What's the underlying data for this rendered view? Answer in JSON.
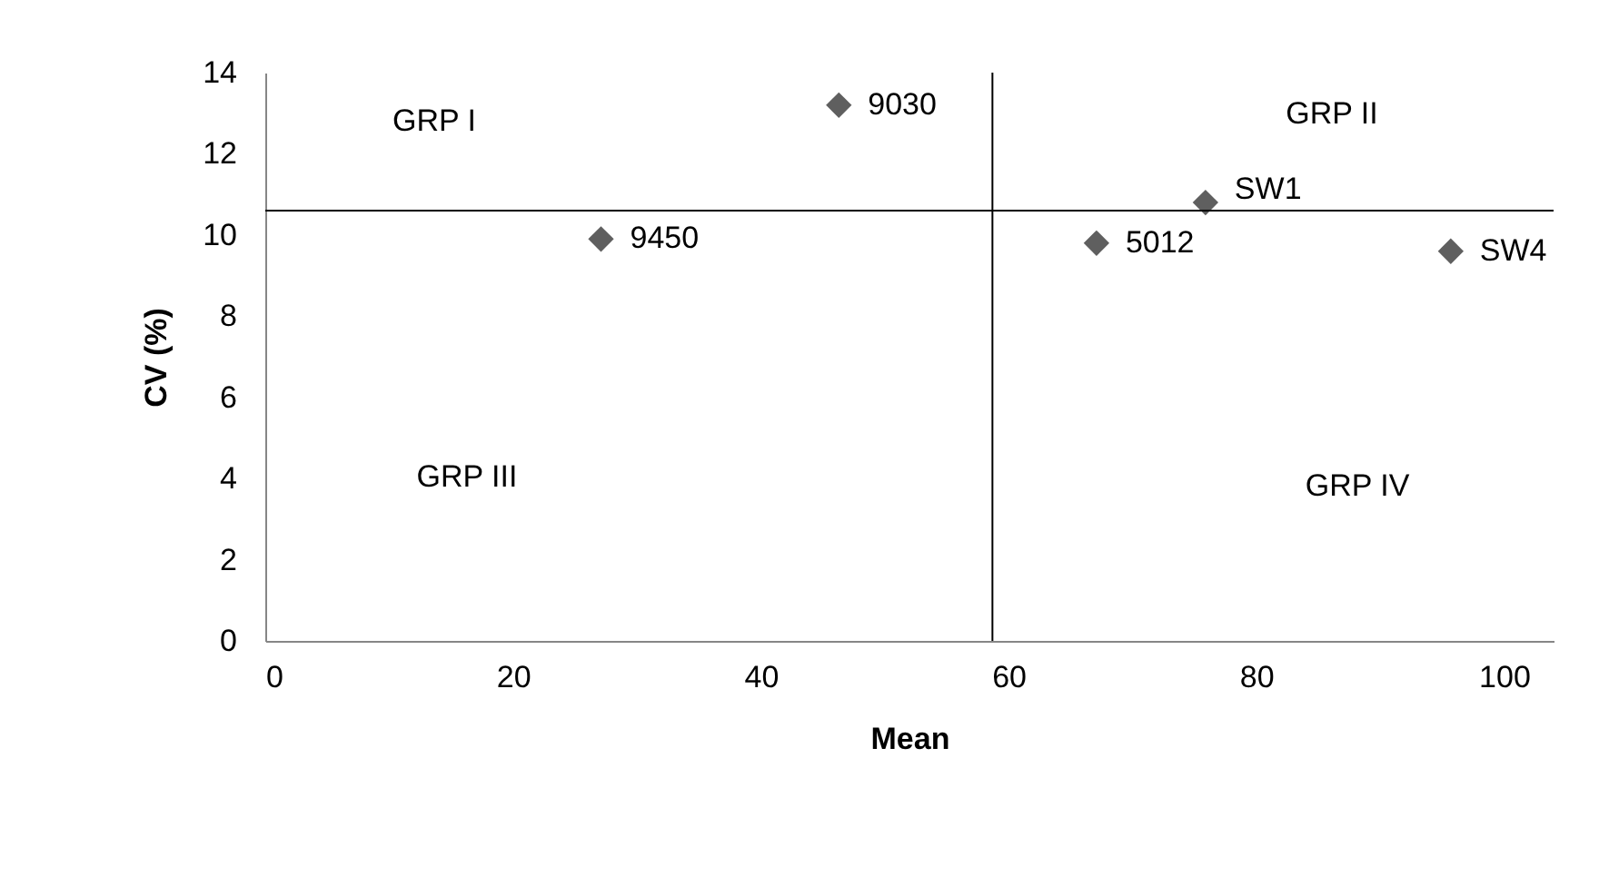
{
  "chart_data": {
    "type": "scatter",
    "xlabel": "Mean",
    "ylabel": "CV (%)",
    "x": [
      46.3,
      27.1,
      67.1,
      75.9,
      95.7
    ],
    "series": [
      {
        "color": "#5f5f5f",
        "values": [
          13.2,
          9.9,
          9.8,
          10.8,
          9.6
        ]
      }
    ],
    "marker": "diamond",
    "grid": false,
    "xlim": [
      0,
      104
    ],
    "xticks": [
      0,
      20,
      40,
      60,
      80,
      100
    ],
    "ylim": [
      0,
      14
    ],
    "yticks": [
      0,
      2,
      4,
      6,
      8,
      10,
      12,
      14
    ],
    "ref_lines": [
      {
        "axis": "x",
        "value": 58.7,
        "color": "#000000"
      },
      {
        "axis": "y",
        "value": 10.6,
        "color": "#000000"
      }
    ],
    "annotations": [
      {
        "text": "9030",
        "x": 46.3,
        "y": 13.2
      },
      {
        "text": "9450",
        "x": 27.1,
        "y": 9.9
      },
      {
        "text": "5012",
        "x": 67.1,
        "y": 9.8
      },
      {
        "text": "SW1",
        "x": 75.9,
        "y": 10.8
      },
      {
        "text": "SW4",
        "x": 95.7,
        "y": 9.6
      },
      "GRP I",
      "GRP II",
      "GRP III",
      "GRP IV"
    ]
  }
}
